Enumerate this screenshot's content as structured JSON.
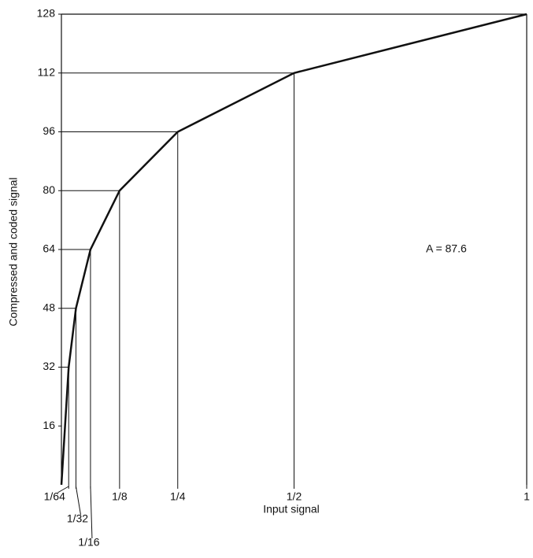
{
  "chart_data": {
    "type": "line",
    "x_label": "Input signal",
    "y_label": "Compressed and coded signal",
    "annotation": "A = 87.6",
    "x": [
      0,
      0.0078125,
      0.015625,
      0.03125,
      0.0625,
      0.125,
      0.25,
      0.5,
      1
    ],
    "series": [
      {
        "color": "#111111",
        "values": [
          0,
          16,
          32,
          48,
          64,
          80,
          96,
          112,
          128
        ]
      }
    ],
    "xlim": [
      0,
      1
    ],
    "ylim": [
      0,
      128
    ],
    "xticks": [
      {
        "value": 0.015625,
        "label": "1/64"
      },
      {
        "value": 0.03125,
        "label": "1/32"
      },
      {
        "value": 0.0625,
        "label": "1/16"
      },
      {
        "value": 0.125,
        "label": "1/8"
      },
      {
        "value": 0.25,
        "label": "1/4"
      },
      {
        "value": 0.5,
        "label": "1/2"
      },
      1
    ],
    "yticks": [
      16,
      32,
      48,
      64,
      80,
      96,
      112,
      128
    ]
  }
}
